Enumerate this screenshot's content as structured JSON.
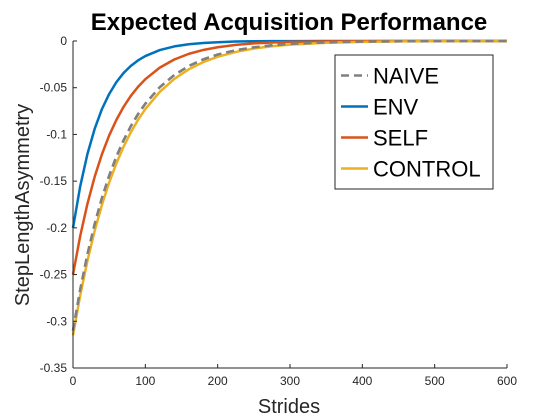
{
  "chart_data": {
    "type": "line",
    "title": "Expected Acquisition Performance",
    "xlabel": "Strides",
    "ylabel": "StepLengthAsymmetry",
    "xlim": [
      0,
      600
    ],
    "ylim": [
      -0.35,
      0
    ],
    "xticks": [
      0,
      100,
      200,
      300,
      400,
      500,
      600
    ],
    "yticks": [
      0,
      -0.05,
      -0.1,
      -0.15,
      -0.2,
      -0.25,
      -0.3,
      -0.35
    ],
    "xtick_labels": [
      "0",
      "100",
      "200",
      "300",
      "400",
      "500",
      "600"
    ],
    "ytick_labels": [
      "0",
      "-0.05",
      "-0.1",
      "-0.15",
      "-0.2",
      "-0.25",
      "-0.3",
      "-0.35"
    ],
    "grid": false,
    "legend_position": "top-right",
    "x": [
      0,
      10,
      20,
      30,
      40,
      50,
      60,
      70,
      80,
      90,
      100,
      120,
      140,
      160,
      180,
      200,
      225,
      250,
      275,
      300,
      350,
      400,
      450,
      500,
      550,
      600
    ],
    "series": [
      {
        "name": "NAIVE",
        "color": "#808080",
        "dash": true,
        "values": [
          -0.31,
          -0.266,
          -0.2282,
          -0.1958,
          -0.168,
          -0.1442,
          -0.1237,
          -0.1062,
          -0.0911,
          -0.0782,
          -0.0671,
          -0.0494,
          -0.0364,
          -0.0268,
          -0.0197,
          -0.0145,
          -0.0099,
          -0.0068,
          -0.0046,
          -0.0031,
          -0.0015,
          -0.0007,
          -0.0003,
          -0.0002,
          -0.0001,
          0.0
        ]
      },
      {
        "name": "ENV",
        "color": "#0072BD",
        "dash": false,
        "values": [
          -0.2,
          -0.1554,
          -0.1208,
          -0.0939,
          -0.0729,
          -0.0567,
          -0.044,
          -0.0342,
          -0.0266,
          -0.0207,
          -0.0161,
          -0.0097,
          -0.0058,
          -0.0035,
          -0.0021,
          -0.0013,
          -0.0006,
          -0.0003,
          -0.0001,
          -0.0001,
          0.0,
          0.0,
          0.0,
          0.0,
          0.0,
          0.0
        ]
      },
      {
        "name": "SELF",
        "color": "#D95319",
        "dash": false,
        "values": [
          -0.25,
          -0.2086,
          -0.1741,
          -0.1452,
          -0.1212,
          -0.1011,
          -0.0844,
          -0.0704,
          -0.0587,
          -0.049,
          -0.0409,
          -0.0285,
          -0.0198,
          -0.0138,
          -0.0096,
          -0.0067,
          -0.0042,
          -0.0026,
          -0.0016,
          -0.001,
          -0.0004,
          -0.0002,
          -0.0001,
          0.0,
          0.0,
          0.0
        ]
      },
      {
        "name": "CONTROL",
        "color": "#EDB120",
        "dash": false,
        "values": [
          -0.315,
          -0.2721,
          -0.235,
          -0.203,
          -0.1754,
          -0.1515,
          -0.1309,
          -0.113,
          -0.0976,
          -0.0843,
          -0.0729,
          -0.0544,
          -0.0406,
          -0.0303,
          -0.0226,
          -0.0169,
          -0.0117,
          -0.0081,
          -0.0056,
          -0.0039,
          -0.0019,
          -0.0009,
          -0.0004,
          -0.0002,
          -0.0001,
          0.0
        ]
      }
    ]
  }
}
